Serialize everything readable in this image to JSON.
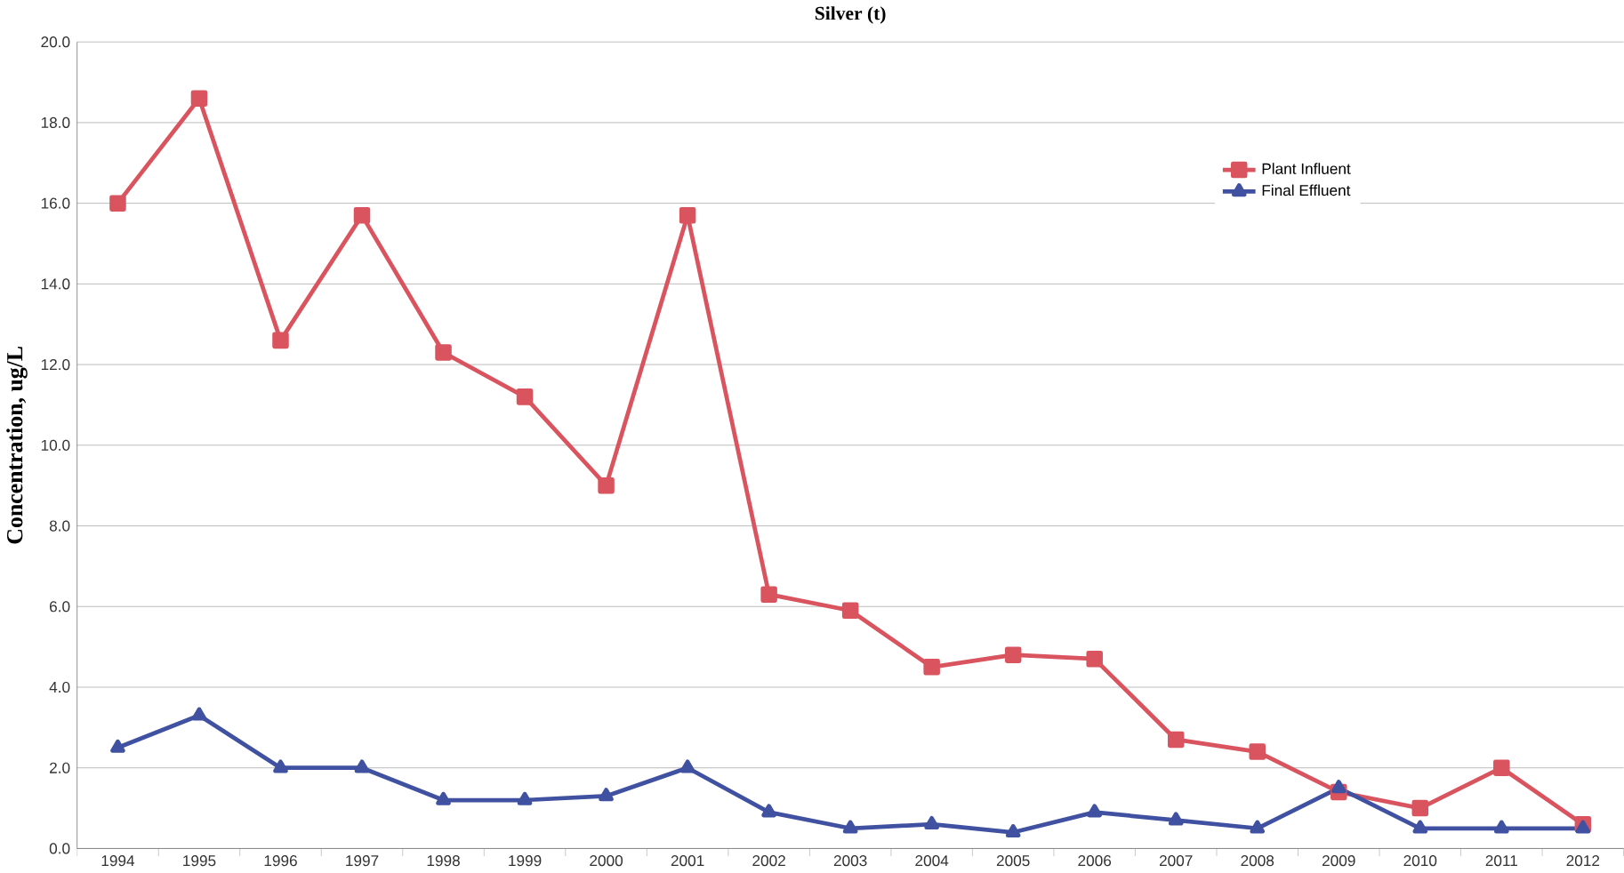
{
  "chart_data": {
    "type": "line",
    "title": "Silver (t)",
    "ylabel": "Concentration, ug/L",
    "categories": [
      "1994",
      "1995",
      "1996",
      "1997",
      "1998",
      "1999",
      "2000",
      "2001",
      "2002",
      "2003",
      "2004",
      "2005",
      "2006",
      "2007",
      "2008",
      "2009",
      "2010",
      "2011",
      "2012"
    ],
    "series": [
      {
        "name": "Plant Influent",
        "color": "#d9545e",
        "marker": "square",
        "values": [
          16.0,
          18.6,
          12.6,
          15.7,
          12.3,
          11.2,
          9.0,
          15.7,
          6.3,
          5.9,
          4.5,
          4.8,
          4.7,
          2.7,
          2.4,
          1.4,
          1.0,
          2.0,
          0.6
        ]
      },
      {
        "name": "Final Effluent",
        "color": "#3f51a0",
        "marker": "triangle",
        "values": [
          2.5,
          3.3,
          2.0,
          2.0,
          1.2,
          1.2,
          1.3,
          2.0,
          0.9,
          0.5,
          0.6,
          0.4,
          0.9,
          0.7,
          0.5,
          1.5,
          0.5,
          0.5,
          0.5
        ]
      }
    ],
    "ylim": [
      0,
      20
    ],
    "yticks": [
      {
        "value": 0,
        "label": "0.0"
      },
      {
        "value": 2,
        "label": "2.0"
      },
      {
        "value": 4,
        "label": "4.0"
      },
      {
        "value": 6,
        "label": "6.0"
      },
      {
        "value": 8,
        "label": "8.0"
      },
      {
        "value": 10,
        "label": "10.0"
      },
      {
        "value": 12,
        "label": "12.0"
      },
      {
        "value": 14,
        "label": "14.0"
      },
      {
        "value": 16,
        "label": "16.0"
      },
      {
        "value": 18,
        "label": "18.0"
      },
      {
        "value": 20,
        "label": "20.0"
      }
    ],
    "grid": "y",
    "legend": "top right",
    "line_style": "solid"
  }
}
